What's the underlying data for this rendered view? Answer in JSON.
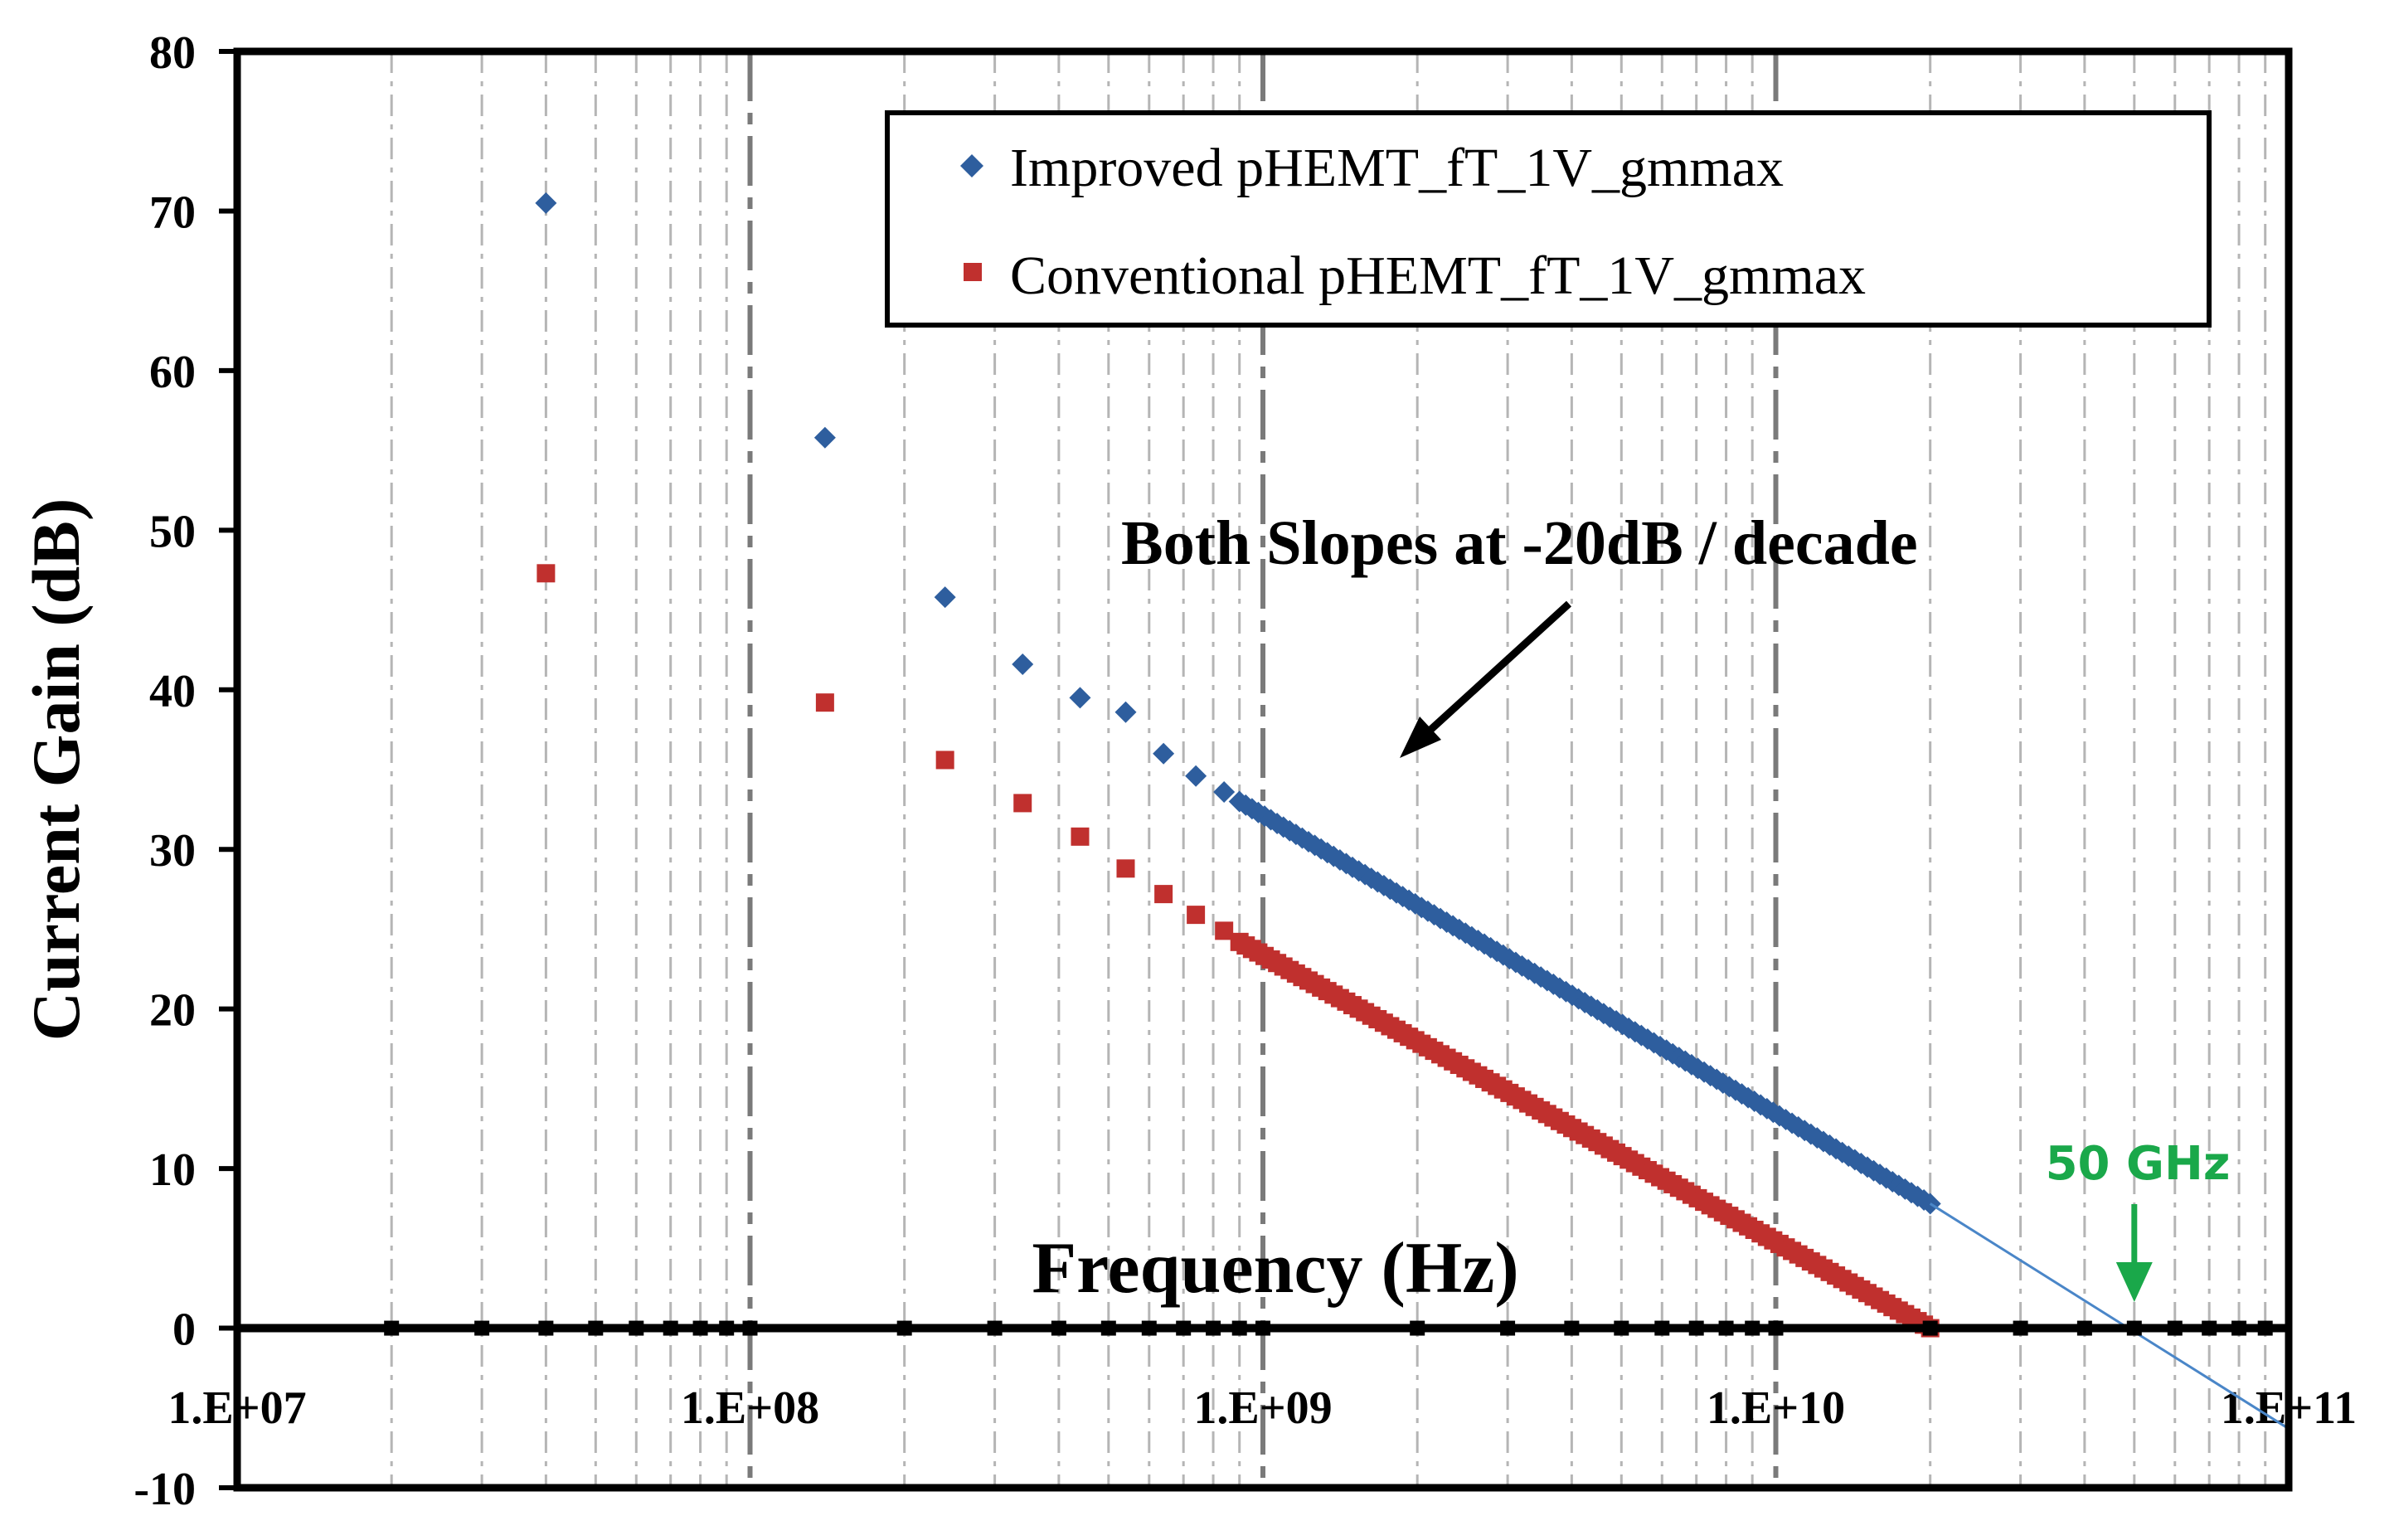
{
  "chart_data": {
    "type": "scatter",
    "title": "",
    "xlabel": "Frequency (Hz)",
    "ylabel": "Current Gain (dB)",
    "xscale": "log",
    "xlim": [
      10000000,
      100000000000
    ],
    "ylim": [
      -10,
      80
    ],
    "x_tick_labels": [
      "1.E+07",
      "1.E+08",
      "1.E+09",
      "1.E+10",
      "1.E+11"
    ],
    "y_tick_labels": [
      "-10",
      "0",
      "10",
      "20",
      "30",
      "40",
      "50",
      "60",
      "70",
      "80"
    ],
    "grid": true,
    "legend_position": "top-right",
    "series": [
      {
        "name": "Improved pHEMT_fT_1V_gmmax",
        "color": "#2e5e9e",
        "marker": "diamond",
        "discrete": [
          {
            "x": 40000000,
            "y": 70.5
          },
          {
            "x": 140000000,
            "y": 55.8
          },
          {
            "x": 240000000,
            "y": 45.8
          },
          {
            "x": 340000000,
            "y": 41.6
          },
          {
            "x": 440000000,
            "y": 39.5
          },
          {
            "x": 540000000,
            "y": 38.6
          },
          {
            "x": 640000000,
            "y": 36.0
          },
          {
            "x": 740000000,
            "y": 34.6
          },
          {
            "x": 840000000,
            "y": 33.6
          }
        ],
        "dense_range": {
          "x_start": 900000000,
          "x_end": 20000000000,
          "y_start": 33.0,
          "y_end": 7.8
        }
      },
      {
        "name": "Conventional pHEMT_fT_1V_gmmax",
        "color": "#c0302e",
        "marker": "square",
        "discrete": [
          {
            "x": 40000000,
            "y": 47.3
          },
          {
            "x": 140000000,
            "y": 39.2
          },
          {
            "x": 240000000,
            "y": 35.6
          },
          {
            "x": 340000000,
            "y": 32.9
          },
          {
            "x": 440000000,
            "y": 30.8
          },
          {
            "x": 540000000,
            "y": 28.8
          },
          {
            "x": 640000000,
            "y": 27.2
          },
          {
            "x": 740000000,
            "y": 25.9
          },
          {
            "x": 840000000,
            "y": 24.9
          }
        ],
        "dense_range": {
          "x_start": 900000000,
          "x_end": 20000000000,
          "y_start": 24.2,
          "y_end": 0.0
        }
      }
    ],
    "trendline": {
      "color": "#4a86c8",
      "x_start": 20000000000,
      "y_start": 7.8,
      "x_end": 100000000000,
      "y_end": -6.3
    },
    "annotations": [
      {
        "text": "Both Slopes at -20dB / decade",
        "arrow": true
      },
      {
        "text": "50 GHz",
        "color": "#1aa84a",
        "x": 50000000000,
        "y": 0
      }
    ]
  }
}
